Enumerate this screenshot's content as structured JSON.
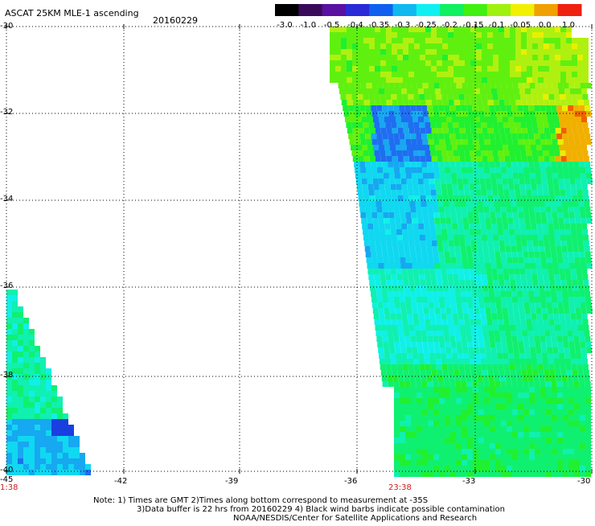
{
  "header": {
    "title": "ASCAT 25KM MLE-1 ascending",
    "date": "20160229"
  },
  "colorbar": {
    "ticks": [
      "-3.0",
      "-1.0",
      "-0.5",
      "-0.4",
      "-0.35",
      "-0.3",
      "-0.25",
      "-0.2",
      "-0.15",
      "-0.1",
      "-0.05",
      "0.0",
      "1.0"
    ],
    "colors": [
      "#000000",
      "#3a0a5a",
      "#5a10a0",
      "#2a2ad8",
      "#1060f0",
      "#10b8f0",
      "#10f0f0",
      "#10f060",
      "#40f010",
      "#a0f010",
      "#f0f000",
      "#f0a000",
      "#f02010"
    ]
  },
  "axes": {
    "lat_labels": [
      "-30",
      "-32",
      "-34",
      "-36",
      "-38",
      "-40"
    ],
    "lon_labels": [
      "-45",
      "-42",
      "-39",
      "-36",
      "-33",
      "-30"
    ]
  },
  "time_labels": [
    "1:38",
    "23:38"
  ],
  "notes": [
    "Note: 1) Times are GMT 2)Times along bottom correspond to measurement at -35S",
    "3)Data buffer is 22 hrs from 20160229 4) Black wind barbs indicate possible contamination",
    "NOAA/NESDIS/Center for Satellite Applications and Research"
  ]
}
